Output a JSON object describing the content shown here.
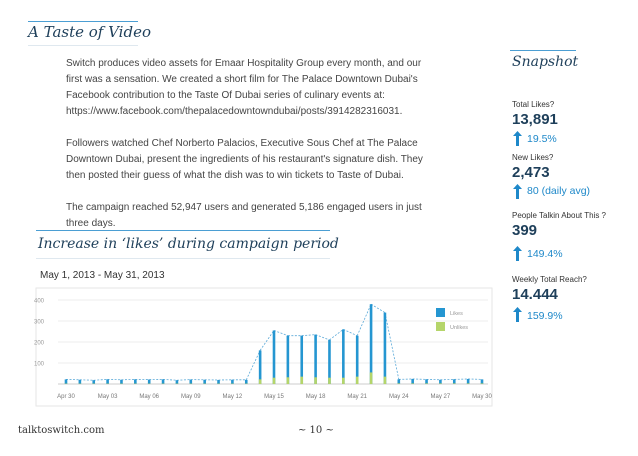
{
  "section_title": "A Taste of Video",
  "body": {
    "paragraph_1": "Switch produces video assets for Emaar Hospitality Group every month, and our first was a sensation. We created a short film for The Palace Downtown Dubai's Facebook contribution to the Taste Of Dubai series of culinary events at: https://www.facebook.com/thepalacedowntowndubai/posts/3914282316031.",
    "paragraph_2": "Followers watched Chef Norberto Palacios, Executive Sous Chef at The Palace Downtown Dubai, present the ingredients of his restaurant's signature dish. They then posted their guess of what the dish was to win tickets to Taste of Dubai.",
    "paragraph_3": "The campaign reached 52,947 users and generated 5,186 engaged users in just three days."
  },
  "snapshot": {
    "title": "Snapshot",
    "metrics": [
      {
        "label": "Total Likes?",
        "value": "13,891",
        "change": "19.5%"
      },
      {
        "label": "New Likes?",
        "value": "2,473",
        "change": "80 (daily avg)"
      },
      {
        "label": "People Talkin About This ?",
        "value": "399",
        "change": "149.4%"
      },
      {
        "label": "Weekly Total Reach?",
        "value": "14.444",
        "change": "159.9%"
      }
    ]
  },
  "chart_section": {
    "title": "Increase in ‘likes’ during campaign period",
    "date_range": "May 1, 2013 - May 31, 2013"
  },
  "chart_data": {
    "type": "bar",
    "title": "Increase in ‘likes’ during campaign period",
    "subtitle": "May 1, 2013 - May 31, 2013",
    "xlabel": "",
    "ylabel": "",
    "ylim": [
      0,
      400
    ],
    "yticks": [
      100,
      200,
      300,
      400
    ],
    "grid": true,
    "legend": "right",
    "xtick_labels": [
      "Apr 30",
      "May 03",
      "May 06",
      "May 09",
      "May 12",
      "May 15",
      "May 18",
      "May 21",
      "May 24",
      "May 27",
      "May 30"
    ],
    "categories": [
      "Apr 30",
      "May 01",
      "May 02",
      "May 03",
      "May 04",
      "May 05",
      "May 06",
      "May 07",
      "May 08",
      "May 09",
      "May 10",
      "May 11",
      "May 12",
      "May 13",
      "May 14",
      "May 15",
      "May 16",
      "May 17",
      "May 18",
      "May 19",
      "May 20",
      "May 21",
      "May 22",
      "May 23",
      "May 24",
      "May 25",
      "May 26",
      "May 27",
      "May 28",
      "May 29",
      "May 30"
    ],
    "series": [
      {
        "name": "Likes",
        "color": "#2596d1",
        "values": [
          22,
          20,
          18,
          22,
          20,
          22,
          21,
          22,
          18,
          21,
          20,
          19,
          20,
          20,
          160,
          255,
          230,
          230,
          235,
          210,
          260,
          230,
          380,
          340,
          22,
          24,
          22,
          20,
          22,
          24,
          22
        ]
      },
      {
        "name": "Unlikes",
        "color": "#b5d56a",
        "values": [
          2,
          2,
          2,
          2,
          2,
          2,
          2,
          2,
          2,
          2,
          2,
          2,
          2,
          2,
          22,
          30,
          32,
          35,
          32,
          30,
          30,
          35,
          55,
          35,
          3,
          3,
          3,
          3,
          3,
          3,
          3
        ]
      }
    ]
  },
  "footer": {
    "website": "talktoswitch.com",
    "page_number": "~ 10 ~"
  }
}
